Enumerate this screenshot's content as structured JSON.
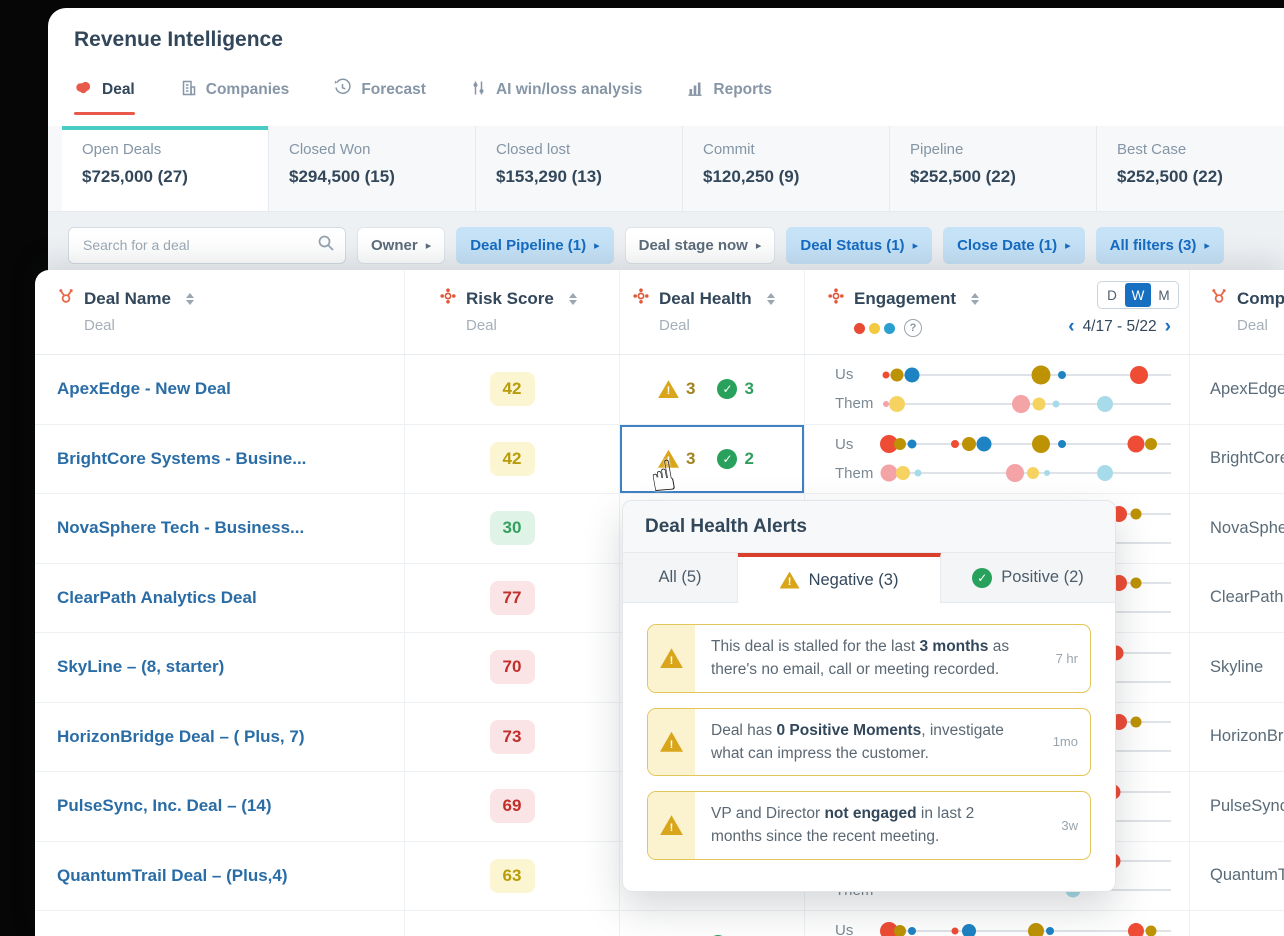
{
  "app_title": "Revenue Intelligence",
  "nav_tabs": [
    {
      "label": "Deal",
      "active": true
    },
    {
      "label": "Companies",
      "active": false
    },
    {
      "label": "Forecast",
      "active": false
    },
    {
      "label": "AI win/loss analysis",
      "active": false
    },
    {
      "label": "Reports",
      "active": false
    }
  ],
  "summary_cards": [
    {
      "label": "Open Deals",
      "value": "$725,000 (27)",
      "active": true
    },
    {
      "label": "Closed Won",
      "value": "$294,500 (15)",
      "active": false
    },
    {
      "label": "Closed lost",
      "value": "$153,290 (13)",
      "active": false
    },
    {
      "label": "Commit",
      "value": "$120,250 (9)",
      "active": false
    },
    {
      "label": "Pipeline",
      "value": "$252,500 (22)",
      "active": false
    },
    {
      "label": "Best Case",
      "value": "$252,500 (22)",
      "active": false
    }
  ],
  "filters": {
    "search_placeholder": "Search for a deal",
    "chips": [
      {
        "label": "Owner",
        "active": false
      },
      {
        "label": "Deal Pipeline (1)",
        "active": true
      },
      {
        "label": "Deal stage now",
        "active": false
      },
      {
        "label": "Deal Status (1)",
        "active": true
      },
      {
        "label": "Close Date (1)",
        "active": true
      },
      {
        "label": "All filters (3)",
        "active": true
      }
    ]
  },
  "table": {
    "columns": [
      {
        "title": "Deal Name",
        "sub": "Deal"
      },
      {
        "title": "Risk Score",
        "sub": "Deal"
      },
      {
        "title": "Deal Health",
        "sub": "Deal"
      },
      {
        "title": "Engagement",
        "sub": ""
      },
      {
        "title": "Company",
        "sub": "Deal"
      }
    ],
    "engagement": {
      "periods": [
        "D",
        "W",
        "M"
      ],
      "active_period": "W",
      "date_range": "4/17 - 5/22",
      "us_label": "Us",
      "them_label": "Them"
    },
    "rows": [
      {
        "name": "ApexEdge - New Deal",
        "company": "ApexEdge",
        "risk": {
          "value": "42",
          "level": "yellow"
        },
        "health": {
          "neg": "3",
          "pos": "3"
        },
        "selected": false,
        "eng": {
          "us": [
            [
              1,
              "red",
              7
            ],
            [
              5,
              "gold",
              13
            ],
            [
              10,
              "blue",
              15
            ],
            [
              55,
              "gold",
              19
            ],
            [
              62,
              "blue",
              8
            ],
            [
              89,
              "red",
              18
            ]
          ],
          "them": [
            [
              1,
              "pink",
              6
            ],
            [
              5,
              "yellow",
              16
            ],
            [
              48,
              "pink",
              18
            ],
            [
              54,
              "yellow",
              13
            ],
            [
              60,
              "lightblue",
              7
            ],
            [
              77,
              "lightblue",
              16
            ]
          ]
        }
      },
      {
        "name": "BrightCore Systems - Busine...",
        "company": "BrightCore",
        "risk": {
          "value": "42",
          "level": "yellow"
        },
        "health": {
          "neg": "3",
          "pos": "2"
        },
        "selected": true,
        "eng": {
          "us": [
            [
              2,
              "red",
              18
            ],
            [
              6,
              "gold",
              12
            ],
            [
              10,
              "blue",
              9
            ],
            [
              25,
              "red",
              8
            ],
            [
              30,
              "gold",
              14
            ],
            [
              35,
              "blue",
              15
            ],
            [
              55,
              "gold",
              18
            ],
            [
              62,
              "blue",
              8
            ],
            [
              88,
              "red",
              17
            ],
            [
              93,
              "gold",
              12
            ]
          ],
          "them": [
            [
              2,
              "pink",
              17
            ],
            [
              7,
              "yellow",
              14
            ],
            [
              12,
              "lightblue",
              7
            ],
            [
              46,
              "pink",
              18
            ],
            [
              52,
              "yellow",
              12
            ],
            [
              57,
              "lightblue",
              6
            ],
            [
              77,
              "lightblue",
              16
            ]
          ]
        }
      },
      {
        "name": "NovaSphere Tech - Business...",
        "company": "NovaSphere",
        "risk": {
          "value": "30",
          "level": "green"
        },
        "health": null,
        "selected": false,
        "eng": {
          "us": [
            [
              82,
              "red",
              16
            ],
            [
              88,
              "gold",
              11
            ]
          ],
          "them": []
        }
      },
      {
        "name": "ClearPath Analytics Deal",
        "company": "ClearPath",
        "risk": {
          "value": "77",
          "level": "red"
        },
        "health": null,
        "selected": false,
        "eng": {
          "us": [
            [
              82,
              "red",
              16
            ],
            [
              88,
              "gold",
              11
            ]
          ],
          "them": []
        }
      },
      {
        "name": "SkyLine – (8, starter)",
        "company": "Skyline",
        "risk": {
          "value": "70",
          "level": "red"
        },
        "health": null,
        "selected": false,
        "eng": {
          "us": [
            [
              81,
              "red",
              15
            ]
          ],
          "them": []
        }
      },
      {
        "name": "HorizonBridge Deal – ( Plus, 7)",
        "company": "HorizonBridge",
        "risk": {
          "value": "73",
          "level": "red"
        },
        "health": null,
        "selected": false,
        "eng": {
          "us": [
            [
              82,
              "red",
              16
            ],
            [
              88,
              "gold",
              11
            ]
          ],
          "them": []
        }
      },
      {
        "name": "PulseSync, Inc. Deal – (14)",
        "company": "PulseSync",
        "risk": {
          "value": "69",
          "level": "red"
        },
        "health": null,
        "selected": false,
        "eng": {
          "us": [
            [
              80,
              "red",
              15
            ]
          ],
          "them": []
        }
      },
      {
        "name": "QuantumTrail Deal – (Plus,4)",
        "company": "QuantumTrail",
        "risk": {
          "value": "63",
          "level": "yellow"
        },
        "health": null,
        "selected": false,
        "eng": {
          "us": [
            [
              80,
              "red",
              15
            ]
          ],
          "them": [
            [
              66,
              "lightblue",
              15
            ]
          ]
        }
      },
      {
        "name": "",
        "company": "",
        "risk": {
          "value": "",
          "level": "red"
        },
        "health": {
          "neg": "",
          "pos": ""
        },
        "selected": false,
        "eng": {
          "us": [
            [
              2,
              "red",
              18
            ],
            [
              6,
              "gold",
              12
            ],
            [
              10,
              "blue",
              8
            ],
            [
              25,
              "red",
              7
            ],
            [
              30,
              "blue",
              14
            ],
            [
              53,
              "gold",
              16
            ],
            [
              58,
              "blue",
              8
            ],
            [
              88,
              "red",
              16
            ],
            [
              93,
              "gold",
              11
            ]
          ],
          "them": []
        }
      }
    ]
  },
  "popup": {
    "title": "Deal Health Alerts",
    "tabs": [
      {
        "label": "All (5)",
        "active": false
      },
      {
        "label": "Negative (3)",
        "active": true,
        "icon": "warning"
      },
      {
        "label": "Positive (2)",
        "active": false,
        "icon": "check"
      }
    ],
    "alerts": [
      {
        "pre": "This deal is stalled for the last ",
        "bold": "3 months",
        "post": " as there's no email, call or meeting recorded.",
        "time": "7 hr"
      },
      {
        "pre": "Deal has ",
        "bold": "0 Positive Moments",
        "post": ", investigate what can impress the customer.",
        "time": "1mo"
      },
      {
        "pre": "VP and Director ",
        "bold": "not engaged",
        "post": " in last 2 months since the recent meeting.",
        "time": "3w"
      }
    ]
  },
  "colors": {
    "accent_red": "#e8594a",
    "teal_accent": "#49ccc4",
    "link_blue": "#2a6da6",
    "chip_active_bg": "#c6e2f7",
    "chip_active_text": "#146cc2",
    "popup_tab_bar_red": "#d8402c",
    "warning_yellow": "#d9a61b",
    "positive_green": "#27a15c",
    "dots": {
      "red": "#ee4c35",
      "gold": "#bd9204",
      "blue": "#1e83c2",
      "pink": "#f4a3a6",
      "yellow": "#f6d360",
      "lightblue": "#a7dbe9"
    }
  }
}
